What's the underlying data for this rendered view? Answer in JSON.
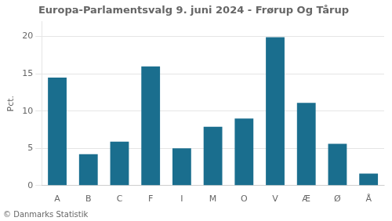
{
  "chart_data": {
    "type": "bar",
    "title": "Europa-Parlamentsvalg 9. juni 2024 - Frørup Og Tårup",
    "categories": [
      "A",
      "B",
      "C",
      "F",
      "I",
      "M",
      "O",
      "V",
      "Æ",
      "Ø",
      "Å"
    ],
    "values": [
      14.5,
      4.2,
      5.9,
      16.0,
      5.0,
      7.9,
      9.0,
      19.9,
      11.1,
      5.6,
      1.6
    ],
    "color": "#1a6e8e",
    "ylabel": "Pct.",
    "footer": "© Danmarks Statistik",
    "ylim": [
      0,
      22
    ],
    "yticks": [
      0,
      5,
      10,
      15,
      20
    ],
    "grid": true
  }
}
